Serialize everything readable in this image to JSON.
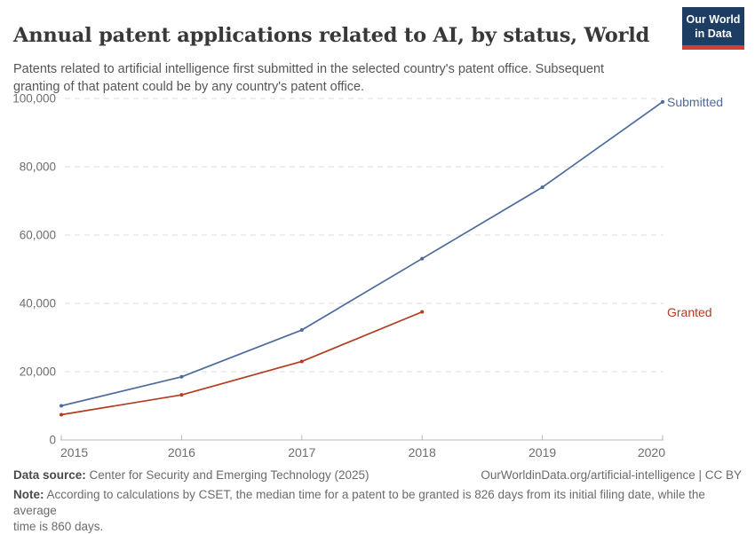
{
  "header": {
    "title": "Annual patent applications related to AI, by status, World",
    "subtitle": "Patents related to artificial intelligence first submitted in the selected country's patent office. Subsequent\ngranting of that patent could be by any country's patent office.",
    "logo": {
      "line1": "Our World",
      "line2": "in Data",
      "bg_color": "#1d3d63",
      "bar_color": "#d73c32"
    }
  },
  "chart_data": {
    "type": "line",
    "title": "Annual patent applications related to AI, by status, World",
    "x": [
      2015,
      2016,
      2017,
      2018,
      2019,
      2020
    ],
    "xtick_labels": [
      "2015",
      "2016",
      "2017",
      "2018",
      "2019",
      "2020"
    ],
    "series": [
      {
        "name": "Submitted",
        "color": "#4C6A9C",
        "values": [
          10000,
          18500,
          32200,
          53100,
          74000,
          99000
        ]
      },
      {
        "name": "Granted",
        "color": "#B13C1F",
        "values": [
          7400,
          13200,
          23000,
          37500
        ]
      }
    ],
    "ylim": [
      0,
      100000
    ],
    "yticks": [
      0,
      20000,
      40000,
      60000,
      80000,
      100000
    ],
    "ytick_labels": [
      "0",
      "20,000",
      "40,000",
      "60,000",
      "80,000",
      "100,000"
    ],
    "grid": "horizontal dashed",
    "legend_position": "right of line ends",
    "colors": {
      "grid": "#dcdcdc",
      "axis": "#b8b8b8",
      "tick_text": "#6e6e6e"
    }
  },
  "footer": {
    "datasource_label": "Data source:",
    "datasource_text": "Center for Security and Emerging Technology (2025)",
    "attribution": "OurWorldinData.org/artificial-intelligence | CC BY",
    "note_label": "Note:",
    "note_text": "According to calculations by CSET, the median time for a patent to be granted is 826 days from its initial filing date, while the average\ntime is 860 days."
  }
}
